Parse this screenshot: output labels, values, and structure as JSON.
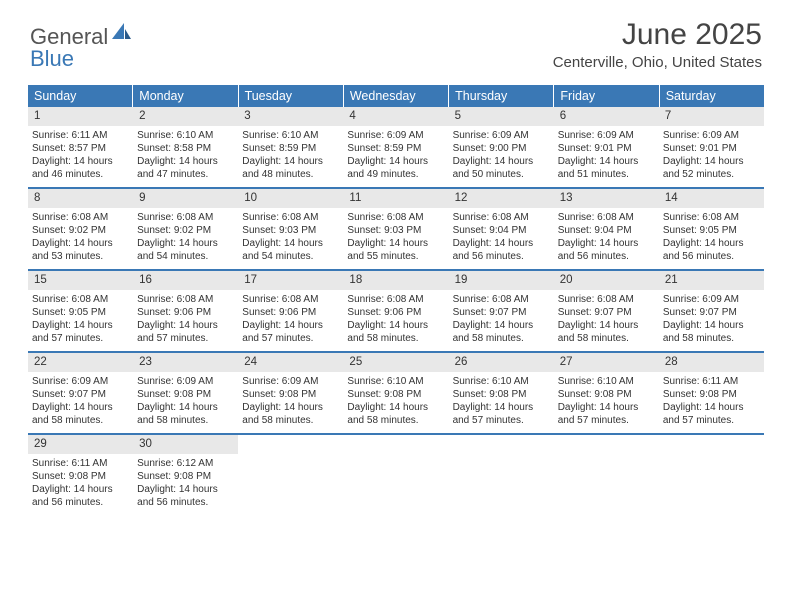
{
  "brand": {
    "text1": "General",
    "text2": "Blue"
  },
  "title": "June 2025",
  "location": "Centerville, Ohio, United States",
  "colors": {
    "header_bg": "#3a78b5",
    "header_text": "#ffffff",
    "daynum_bg": "#e8e8e8",
    "body_text": "#333333",
    "row_border": "#3a78b5",
    "page_bg": "#ffffff"
  },
  "fonts": {
    "title_size_pt": 22,
    "location_size_pt": 11,
    "dayheader_size_pt": 9,
    "cell_size_pt": 7.5
  },
  "day_headers": [
    "Sunday",
    "Monday",
    "Tuesday",
    "Wednesday",
    "Thursday",
    "Friday",
    "Saturday"
  ],
  "weeks": [
    [
      {
        "n": "1",
        "sr": "Sunrise: 6:11 AM",
        "ss": "Sunset: 8:57 PM",
        "dl": "Daylight: 14 hours and 46 minutes."
      },
      {
        "n": "2",
        "sr": "Sunrise: 6:10 AM",
        "ss": "Sunset: 8:58 PM",
        "dl": "Daylight: 14 hours and 47 minutes."
      },
      {
        "n": "3",
        "sr": "Sunrise: 6:10 AM",
        "ss": "Sunset: 8:59 PM",
        "dl": "Daylight: 14 hours and 48 minutes."
      },
      {
        "n": "4",
        "sr": "Sunrise: 6:09 AM",
        "ss": "Sunset: 8:59 PM",
        "dl": "Daylight: 14 hours and 49 minutes."
      },
      {
        "n": "5",
        "sr": "Sunrise: 6:09 AM",
        "ss": "Sunset: 9:00 PM",
        "dl": "Daylight: 14 hours and 50 minutes."
      },
      {
        "n": "6",
        "sr": "Sunrise: 6:09 AM",
        "ss": "Sunset: 9:01 PM",
        "dl": "Daylight: 14 hours and 51 minutes."
      },
      {
        "n": "7",
        "sr": "Sunrise: 6:09 AM",
        "ss": "Sunset: 9:01 PM",
        "dl": "Daylight: 14 hours and 52 minutes."
      }
    ],
    [
      {
        "n": "8",
        "sr": "Sunrise: 6:08 AM",
        "ss": "Sunset: 9:02 PM",
        "dl": "Daylight: 14 hours and 53 minutes."
      },
      {
        "n": "9",
        "sr": "Sunrise: 6:08 AM",
        "ss": "Sunset: 9:02 PM",
        "dl": "Daylight: 14 hours and 54 minutes."
      },
      {
        "n": "10",
        "sr": "Sunrise: 6:08 AM",
        "ss": "Sunset: 9:03 PM",
        "dl": "Daylight: 14 hours and 54 minutes."
      },
      {
        "n": "11",
        "sr": "Sunrise: 6:08 AM",
        "ss": "Sunset: 9:03 PM",
        "dl": "Daylight: 14 hours and 55 minutes."
      },
      {
        "n": "12",
        "sr": "Sunrise: 6:08 AM",
        "ss": "Sunset: 9:04 PM",
        "dl": "Daylight: 14 hours and 56 minutes."
      },
      {
        "n": "13",
        "sr": "Sunrise: 6:08 AM",
        "ss": "Sunset: 9:04 PM",
        "dl": "Daylight: 14 hours and 56 minutes."
      },
      {
        "n": "14",
        "sr": "Sunrise: 6:08 AM",
        "ss": "Sunset: 9:05 PM",
        "dl": "Daylight: 14 hours and 56 minutes."
      }
    ],
    [
      {
        "n": "15",
        "sr": "Sunrise: 6:08 AM",
        "ss": "Sunset: 9:05 PM",
        "dl": "Daylight: 14 hours and 57 minutes."
      },
      {
        "n": "16",
        "sr": "Sunrise: 6:08 AM",
        "ss": "Sunset: 9:06 PM",
        "dl": "Daylight: 14 hours and 57 minutes."
      },
      {
        "n": "17",
        "sr": "Sunrise: 6:08 AM",
        "ss": "Sunset: 9:06 PM",
        "dl": "Daylight: 14 hours and 57 minutes."
      },
      {
        "n": "18",
        "sr": "Sunrise: 6:08 AM",
        "ss": "Sunset: 9:06 PM",
        "dl": "Daylight: 14 hours and 58 minutes."
      },
      {
        "n": "19",
        "sr": "Sunrise: 6:08 AM",
        "ss": "Sunset: 9:07 PM",
        "dl": "Daylight: 14 hours and 58 minutes."
      },
      {
        "n": "20",
        "sr": "Sunrise: 6:08 AM",
        "ss": "Sunset: 9:07 PM",
        "dl": "Daylight: 14 hours and 58 minutes."
      },
      {
        "n": "21",
        "sr": "Sunrise: 6:09 AM",
        "ss": "Sunset: 9:07 PM",
        "dl": "Daylight: 14 hours and 58 minutes."
      }
    ],
    [
      {
        "n": "22",
        "sr": "Sunrise: 6:09 AM",
        "ss": "Sunset: 9:07 PM",
        "dl": "Daylight: 14 hours and 58 minutes."
      },
      {
        "n": "23",
        "sr": "Sunrise: 6:09 AM",
        "ss": "Sunset: 9:08 PM",
        "dl": "Daylight: 14 hours and 58 minutes."
      },
      {
        "n": "24",
        "sr": "Sunrise: 6:09 AM",
        "ss": "Sunset: 9:08 PM",
        "dl": "Daylight: 14 hours and 58 minutes."
      },
      {
        "n": "25",
        "sr": "Sunrise: 6:10 AM",
        "ss": "Sunset: 9:08 PM",
        "dl": "Daylight: 14 hours and 58 minutes."
      },
      {
        "n": "26",
        "sr": "Sunrise: 6:10 AM",
        "ss": "Sunset: 9:08 PM",
        "dl": "Daylight: 14 hours and 57 minutes."
      },
      {
        "n": "27",
        "sr": "Sunrise: 6:10 AM",
        "ss": "Sunset: 9:08 PM",
        "dl": "Daylight: 14 hours and 57 minutes."
      },
      {
        "n": "28",
        "sr": "Sunrise: 6:11 AM",
        "ss": "Sunset: 9:08 PM",
        "dl": "Daylight: 14 hours and 57 minutes."
      }
    ],
    [
      {
        "n": "29",
        "sr": "Sunrise: 6:11 AM",
        "ss": "Sunset: 9:08 PM",
        "dl": "Daylight: 14 hours and 56 minutes."
      },
      {
        "n": "30",
        "sr": "Sunrise: 6:12 AM",
        "ss": "Sunset: 9:08 PM",
        "dl": "Daylight: 14 hours and 56 minutes."
      },
      null,
      null,
      null,
      null,
      null
    ]
  ]
}
